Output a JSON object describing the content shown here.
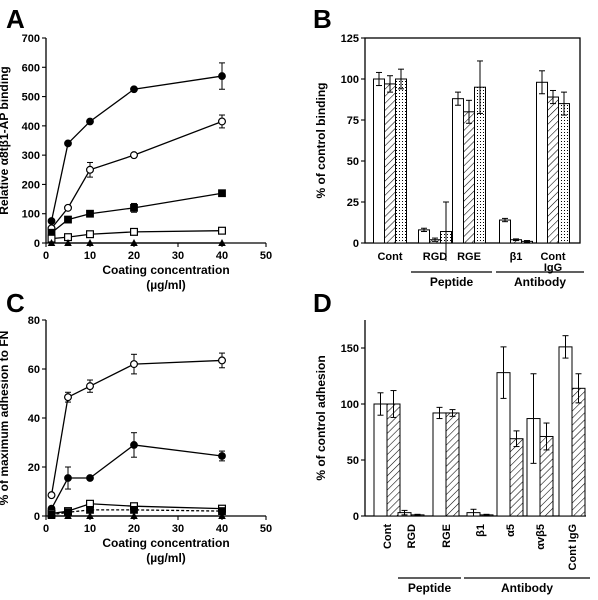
{
  "chart_data": [
    {
      "panel": "A",
      "type": "line",
      "xlabel": "Coating concentration",
      "xlabel2": "(µg/ml)",
      "ylabel": "Relative α8tβ1-AP binding",
      "xlim": [
        0,
        50
      ],
      "ylim": [
        0,
        700
      ],
      "xticks": [
        0,
        10,
        20,
        30,
        40,
        50
      ],
      "yticks": [
        0,
        100,
        200,
        300,
        400,
        500,
        600,
        700
      ],
      "x": [
        1.25,
        5,
        10,
        20,
        40
      ],
      "series": [
        {
          "marker": "filled-circle",
          "values": [
            75,
            340,
            415,
            525,
            570
          ],
          "errors": [
            0,
            0,
            0,
            0,
            45
          ]
        },
        {
          "marker": "open-circle",
          "values": [
            50,
            120,
            250,
            300,
            415
          ],
          "errors": [
            0,
            0,
            25,
            0,
            22
          ]
        },
        {
          "marker": "filled-square",
          "values": [
            35,
            80,
            100,
            120,
            170
          ],
          "errors": [
            0,
            0,
            0,
            15,
            0
          ]
        },
        {
          "marker": "open-square",
          "values": [
            15,
            20,
            30,
            38,
            42
          ],
          "errors": [
            0,
            0,
            0,
            0,
            0
          ]
        },
        {
          "marker": "filled-triangle",
          "values": [
            0,
            0,
            0,
            0,
            0
          ],
          "errors": [
            0,
            0,
            0,
            0,
            0
          ]
        }
      ]
    },
    {
      "panel": "B",
      "type": "bar",
      "ylabel": "% of control binding",
      "ylim": [
        0,
        125
      ],
      "yticks": [
        0,
        25,
        50,
        75,
        100,
        125
      ],
      "categories": [
        "Cont",
        "RGD",
        "RGE",
        "β1",
        "Cont IgG"
      ],
      "category_lines": [
        [
          "Cont"
        ],
        [
          "RGD"
        ],
        [
          "RGE"
        ],
        [
          "β1"
        ],
        [
          "Cont",
          "IgG"
        ]
      ],
      "groups": [
        {
          "label": "Peptide",
          "categories": [
            1,
            2
          ]
        },
        {
          "label": "Antibody",
          "categories": [
            3,
            4
          ]
        }
      ],
      "series": [
        {
          "fill": "open",
          "values": [
            100,
            8,
            88,
            14,
            98
          ],
          "errors": [
            4,
            1,
            4,
            1,
            7
          ]
        },
        {
          "fill": "hatched",
          "values": [
            97,
            2,
            80,
            2,
            89
          ],
          "errors": [
            5,
            1,
            7,
            0.5,
            4
          ]
        },
        {
          "fill": "dotted",
          "values": [
            100,
            7,
            95,
            1,
            85
          ],
          "errors": [
            6,
            18,
            16,
            0.5,
            7
          ]
        }
      ]
    },
    {
      "panel": "C",
      "type": "line",
      "xlabel": "Coating concentration",
      "xlabel2": "(µg/ml)",
      "ylabel": "% of maximum adhesion to FN",
      "xlim": [
        0,
        50
      ],
      "ylim": [
        0,
        80
      ],
      "xticks": [
        0,
        10,
        20,
        30,
        40,
        50
      ],
      "yticks": [
        0,
        20,
        40,
        60,
        80
      ],
      "x": [
        1.25,
        5,
        10,
        20,
        40
      ],
      "series": [
        {
          "marker": "open-circle",
          "values": [
            8.5,
            48.5,
            53,
            62,
            63.5
          ],
          "errors": [
            0,
            2,
            2.5,
            4,
            3
          ]
        },
        {
          "marker": "filled-circle",
          "values": [
            3,
            15.5,
            15.5,
            29,
            24.5
          ],
          "errors": [
            0,
            4.5,
            0,
            5,
            2
          ]
        },
        {
          "marker": "open-square",
          "values": [
            1,
            2,
            5,
            4,
            3
          ],
          "errors": [
            0,
            0,
            1,
            0,
            0
          ]
        },
        {
          "marker": "filled-square",
          "values": [
            0.5,
            1.5,
            2.5,
            2.5,
            2
          ],
          "errors": [
            0,
            0,
            0,
            0,
            0
          ],
          "dashed": true
        },
        {
          "marker": "filled-triangle",
          "values": [
            0,
            0,
            0,
            0,
            0
          ],
          "errors": [
            0,
            0,
            0,
            0,
            0
          ]
        }
      ]
    },
    {
      "panel": "D",
      "type": "bar",
      "ylabel": "% of control adhesion",
      "ylim": [
        0,
        175
      ],
      "yticks": [
        0,
        50,
        100,
        150
      ],
      "categories": [
        "Cont",
        "RGD",
        "RGE",
        "β1",
        "α5",
        "αvβ5",
        "Cont IgG"
      ],
      "groups": [
        {
          "label": "Peptide",
          "categories": [
            1,
            2
          ]
        },
        {
          "label": "Antibody",
          "categories": [
            3,
            4,
            5,
            6
          ]
        }
      ],
      "series": [
        {
          "fill": "open",
          "values": [
            100,
            3,
            92,
            3,
            128,
            87,
            151
          ],
          "errors": [
            10,
            2,
            5,
            3,
            23,
            40,
            10
          ]
        },
        {
          "fill": "hatched",
          "values": [
            100,
            1,
            92,
            1,
            69,
            71,
            114
          ],
          "errors": [
            12,
            0.5,
            3,
            0.5,
            7,
            12,
            13
          ]
        }
      ]
    }
  ]
}
